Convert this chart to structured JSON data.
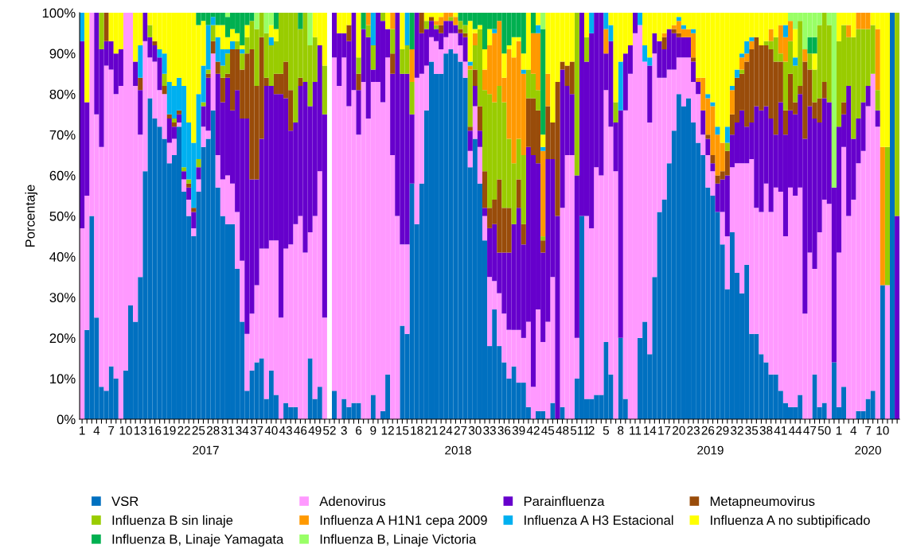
{
  "chart_data": {
    "type": "bar",
    "stacked": true,
    "ylabel": "Porcentaje",
    "ylim": [
      0,
      100
    ],
    "yticks": [
      {
        "value": 0,
        "label": "0%"
      },
      {
        "value": 10,
        "label": "10%"
      },
      {
        "value": 20,
        "label": "20%"
      },
      {
        "value": 30,
        "label": "30%"
      },
      {
        "value": 40,
        "label": "40%"
      },
      {
        "value": 50,
        "label": "50%"
      },
      {
        "value": 60,
        "label": "60%"
      },
      {
        "value": 70,
        "label": "70%"
      },
      {
        "value": 80,
        "label": "80%"
      },
      {
        "value": 90,
        "label": "90%"
      },
      {
        "value": 100,
        "label": "100%"
      }
    ],
    "grid": false,
    "legend": "bottom",
    "annotations": [
      "2017",
      "2018",
      "2019",
      "2020"
    ],
    "categories": [
      "1",
      null,
      null,
      "4",
      null,
      null,
      "7",
      null,
      null,
      "10",
      null,
      null,
      "13",
      null,
      null,
      "16",
      null,
      null,
      "19",
      null,
      null,
      "22",
      null,
      null,
      "25",
      null,
      null,
      "28",
      null,
      null,
      "31",
      null,
      null,
      "34",
      null,
      null,
      "37",
      null,
      null,
      "40",
      null,
      null,
      "43",
      null,
      null,
      "46",
      null,
      null,
      "49",
      null,
      null,
      "52",
      null,
      null,
      "3",
      null,
      null,
      "6",
      null,
      null,
      "9",
      null,
      null,
      "12",
      null,
      null,
      "15",
      null,
      null,
      "18",
      null,
      null,
      "21",
      null,
      null,
      "24",
      null,
      null,
      "27",
      null,
      null,
      "30",
      null,
      null,
      "33",
      null,
      null,
      "36",
      null,
      null,
      "39",
      null,
      null,
      "42",
      null,
      null,
      "45",
      null,
      null,
      "48",
      null,
      null,
      "51",
      null,
      "1",
      "2",
      null,
      null,
      "5",
      null,
      null,
      "8",
      null,
      null,
      "11",
      null,
      null,
      "14",
      null,
      null,
      "17",
      null,
      null,
      "20",
      null,
      null,
      "23",
      null,
      null,
      "26",
      null,
      null,
      "29",
      null,
      null,
      "32",
      null,
      null,
      "35",
      null,
      null,
      "38",
      null,
      null,
      "41",
      null,
      null,
      "44",
      null,
      null,
      "47",
      null,
      null,
      "50",
      null,
      null,
      "1",
      null,
      null,
      "4",
      null,
      null,
      "7",
      null,
      null,
      "10",
      null,
      null,
      null
    ],
    "series": [
      {
        "name": "VSR",
        "color": "#0070c0",
        "values": [
          0,
          22,
          50,
          25,
          8,
          7,
          13,
          10,
          0,
          12,
          28,
          24,
          35,
          61,
          79,
          74,
          72,
          69,
          63,
          65,
          72,
          56,
          50,
          45,
          56,
          67,
          69,
          76,
          57,
          50,
          48,
          48,
          37,
          24,
          7,
          12,
          14,
          15,
          5,
          12,
          6,
          0,
          4,
          3,
          3,
          0,
          0,
          15,
          5,
          8,
          0,
          0,
          7,
          0,
          5,
          3,
          4,
          4,
          0,
          0,
          6,
          0,
          2,
          11,
          0,
          0,
          23,
          21,
          58,
          48,
          58,
          76,
          88,
          85,
          85,
          90,
          91,
          90,
          88,
          84,
          62,
          69,
          58,
          44,
          18,
          27,
          18,
          14,
          10,
          13,
          9,
          9,
          3,
          0,
          2,
          2,
          0,
          4,
          0,
          3,
          0,
          0,
          10,
          50,
          5,
          5,
          6,
          6,
          19,
          11,
          0,
          20,
          5,
          0,
          0,
          20,
          24,
          16,
          35,
          51,
          54,
          63,
          71,
          80,
          77,
          79,
          73,
          68,
          65,
          57,
          55,
          51,
          43,
          32,
          46,
          36,
          31,
          38,
          21,
          21,
          16,
          14,
          11,
          11,
          7,
          4,
          3,
          3,
          6,
          0,
          0,
          11,
          3,
          4,
          0,
          14,
          3,
          8,
          0,
          0,
          2,
          2,
          5,
          7,
          0,
          33,
          0,
          100,
          0
        ]
      },
      {
        "name": "Adenovirus",
        "color": "#ff99ff",
        "values": [
          47,
          33,
          50,
          50,
          59,
          80,
          73,
          70,
          82,
          88,
          72,
          58,
          35,
          32,
          10,
          14,
          9,
          11,
          5,
          4,
          1,
          3,
          4,
          2,
          3,
          5,
          2,
          14,
          8,
          9,
          12,
          10,
          14,
          15,
          14,
          14,
          19,
          27,
          37,
          32,
          38,
          25,
          38,
          40,
          45,
          50,
          41,
          31,
          45,
          53,
          25,
          0,
          82,
          82,
          84,
          74,
          77,
          66,
          83,
          74,
          77,
          83,
          76,
          78,
          65,
          50,
          20,
          22,
          0,
          36,
          27,
          11,
          6,
          8,
          6,
          4,
          4,
          5,
          4,
          4,
          4,
          8,
          9,
          6,
          17,
          7,
          13,
          12,
          12,
          9,
          13,
          11,
          21,
          8,
          25,
          17,
          24,
          31,
          0,
          49,
          65,
          65,
          10,
          0,
          45,
          42,
          56,
          54,
          62,
          61,
          61,
          0,
          71,
          85,
          95,
          77,
          64,
          57,
          55,
          33,
          30,
          23,
          15,
          9,
          12,
          10,
          10,
          12,
          5,
          8,
          6,
          0,
          8,
          13,
          16,
          27,
          32,
          25,
          43,
          31,
          35,
          44,
          40,
          46,
          49,
          41,
          54,
          52,
          51,
          26,
          41,
          26,
          43,
          50,
          53,
          0,
          38,
          59,
          50,
          54,
          61,
          64,
          72,
          78,
          72,
          0,
          33,
          0,
          0
        ]
      },
      {
        "name": "Parainfluenza",
        "color": "#6600cc",
        "values": [
          46,
          23,
          0,
          25,
          24,
          6,
          7,
          10,
          9,
          0,
          0,
          6,
          11,
          7,
          5,
          4,
          8,
          0,
          6,
          3,
          2,
          2,
          3,
          4,
          3,
          5,
          13,
          0,
          20,
          19,
          24,
          18,
          30,
          35,
          53,
          33,
          26,
          27,
          40,
          38,
          36,
          55,
          37,
          28,
          25,
          32,
          42,
          31,
          33,
          31,
          50,
          0,
          11,
          13,
          6,
          16,
          19,
          11,
          13,
          20,
          3,
          17,
          20,
          7,
          20,
          50,
          42,
          42,
          17,
          16,
          10,
          9,
          4,
          3,
          4,
          4,
          3,
          2,
          3,
          6,
          5,
          5,
          4,
          2,
          12,
          14,
          10,
          15,
          19,
          26,
          30,
          23,
          43,
          57,
          36,
          22,
          40,
          29,
          50,
          34,
          17,
          15,
          40,
          50,
          38,
          48,
          38,
          40,
          9,
          21,
          12,
          56,
          14,
          7,
          5,
          0,
          0,
          14,
          5,
          9,
          7,
          10,
          9,
          5,
          5,
          5,
          5,
          3,
          6,
          4,
          2,
          7,
          8,
          15,
          8,
          10,
          13,
          9,
          9,
          25,
          25,
          19,
          23,
          13,
          22,
          25,
          19,
          20,
          23,
          43,
          36,
          37,
          27,
          25,
          25,
          43,
          31,
          8,
          32,
          15,
          11,
          12,
          5,
          0,
          4,
          0,
          0,
          0,
          50
        ]
      },
      {
        "name": "Metapneumovirus",
        "color": "#994c0a",
        "values": [
          0,
          0,
          0,
          0,
          0,
          7,
          0,
          0,
          0,
          0,
          0,
          0,
          3,
          0,
          0,
          1,
          0,
          2,
          1,
          1,
          1,
          0,
          1,
          1,
          0,
          0,
          1,
          3,
          3,
          6,
          1,
          15,
          10,
          12,
          16,
          32,
          23,
          25,
          2,
          0,
          5,
          5,
          9,
          10,
          0,
          2,
          0,
          0,
          0,
          0,
          0,
          0,
          0,
          0,
          0,
          4,
          0,
          4,
          0,
          0,
          0,
          0,
          0,
          0,
          5,
          0,
          0,
          0,
          0,
          0,
          5,
          0,
          1,
          0,
          2,
          0,
          0,
          0,
          1,
          1,
          1,
          4,
          6,
          9,
          5,
          6,
          18,
          11,
          11,
          0,
          7,
          5,
          12,
          14,
          13,
          3,
          13,
          9,
          33,
          2,
          5,
          8,
          0,
          0,
          0,
          0,
          0,
          0,
          0,
          0,
          0,
          0,
          0,
          0,
          0,
          0,
          0,
          0,
          0,
          0,
          3,
          0,
          1,
          1,
          0,
          0,
          1,
          0,
          0,
          1,
          2,
          2,
          2,
          6,
          5,
          11,
          9,
          16,
          18,
          17,
          16,
          15,
          17,
          18,
          10,
          6,
          9,
          3,
          2,
          19,
          9,
          4,
          6,
          4,
          0,
          0,
          0,
          3,
          0,
          0,
          0,
          0,
          0,
          0,
          0,
          0,
          0,
          0,
          0
        ]
      },
      {
        "name": "Influenza B sin linaje",
        "color": "#99cc00",
        "values": [
          0,
          0,
          0,
          0,
          9,
          0,
          0,
          0,
          0,
          0,
          0,
          0,
          0,
          0,
          3,
          0,
          0,
          3,
          0,
          1,
          0,
          1,
          1,
          0,
          2,
          1,
          1,
          4,
          0,
          3,
          5,
          0,
          2,
          4,
          4,
          7,
          14,
          6,
          11,
          10,
          8,
          15,
          12,
          19,
          27,
          12,
          17,
          15,
          11,
          0,
          12,
          0,
          0,
          0,
          0,
          0,
          0,
          4,
          0,
          3,
          6,
          0,
          2,
          0,
          6,
          0,
          6,
          7,
          8,
          0,
          0,
          2,
          0,
          1,
          0,
          0,
          1,
          0,
          2,
          2,
          14,
          6,
          19,
          20,
          28,
          24,
          23,
          26,
          17,
          15,
          10,
          17,
          7,
          6,
          5,
          1,
          0,
          0,
          0,
          0,
          0,
          0,
          40,
          0,
          6,
          0,
          0,
          0,
          0,
          0,
          5,
          0,
          0,
          0,
          0,
          0,
          0,
          0,
          0,
          0,
          0,
          0,
          0,
          0,
          0,
          0,
          0,
          0,
          0,
          0,
          0,
          0,
          0,
          2,
          0,
          0,
          1,
          0,
          0,
          0,
          0,
          1,
          2,
          6,
          2,
          12,
          8,
          9,
          16,
          0,
          4,
          8,
          18,
          17,
          19,
          0,
          21,
          19,
          12,
          25,
          22,
          18,
          14,
          12,
          5,
          0,
          34,
          0,
          50
        ]
      },
      {
        "name": "Influenza A H1N1 cepa 2009",
        "color": "#ff9900",
        "values": [
          0,
          0,
          0,
          0,
          0,
          0,
          0,
          0,
          0,
          0,
          0,
          0,
          0,
          0,
          0,
          0,
          0,
          0,
          0,
          0,
          0,
          0,
          0,
          0,
          0,
          0,
          0,
          0,
          0,
          0,
          0,
          0,
          0,
          0,
          0,
          0,
          0,
          0,
          0,
          0,
          0,
          0,
          0,
          0,
          0,
          0,
          0,
          0,
          0,
          0,
          0,
          0,
          0,
          0,
          0,
          0,
          0,
          0,
          0,
          3,
          0,
          0,
          0,
          0,
          4,
          0,
          0,
          0,
          8,
          0,
          0,
          0,
          0,
          1,
          2,
          2,
          1,
          2,
          0,
          0,
          1,
          3,
          0,
          5,
          12,
          17,
          16,
          6,
          22,
          26,
          24,
          20,
          0,
          10,
          14,
          21,
          8,
          0,
          0,
          0,
          0,
          0,
          0,
          0,
          0,
          0,
          0,
          0,
          6,
          0,
          0,
          0,
          0,
          0,
          0,
          0,
          0,
          0,
          0,
          0,
          1,
          0,
          1,
          3,
          2,
          2,
          6,
          1,
          8,
          9,
          12,
          10,
          7,
          0,
          6,
          0,
          3,
          2,
          2,
          0,
          0,
          0,
          3,
          0,
          7,
          6,
          5,
          0,
          0,
          3,
          0,
          0,
          0,
          0,
          0,
          0,
          0,
          0,
          3,
          0,
          4,
          4,
          4,
          0,
          15,
          34,
          0,
          0,
          0
        ]
      },
      {
        "name": "Influenza A H3 Estacional",
        "color": "#00b0f0",
        "values": [
          7,
          0,
          0,
          0,
          0,
          0,
          0,
          0,
          0,
          0,
          0,
          0,
          8,
          0,
          0,
          0,
          2,
          5,
          8,
          8,
          8,
          20,
          14,
          16,
          16,
          9,
          11,
          2,
          6,
          4,
          1,
          2,
          0,
          1,
          0,
          0,
          0,
          0,
          0,
          2,
          0,
          0,
          0,
          0,
          0,
          0,
          0,
          0,
          0,
          0,
          0,
          0,
          0,
          0,
          0,
          0,
          0,
          0,
          0,
          0,
          8,
          0,
          0,
          0,
          0,
          0,
          0,
          8,
          0,
          0,
          0,
          0,
          0,
          0,
          0,
          0,
          0,
          0,
          0,
          0,
          1,
          0,
          0,
          0,
          0,
          1,
          0,
          0,
          0,
          0,
          0,
          1,
          0,
          0,
          2,
          1,
          0,
          0,
          0,
          0,
          0,
          0,
          0,
          0,
          0,
          5,
          0,
          0,
          4,
          4,
          0,
          12,
          0,
          0,
          0,
          3,
          4,
          2,
          0,
          0,
          0,
          0,
          0,
          1,
          1,
          0,
          1,
          0,
          0,
          1,
          1,
          2,
          0,
          4,
          1,
          2,
          1,
          3,
          1,
          0,
          0,
          0,
          0,
          0,
          0,
          3,
          0,
          2,
          0,
          0,
          0,
          0,
          0,
          0,
          0,
          0,
          0,
          0,
          0,
          0,
          0,
          0,
          0,
          0,
          0,
          0,
          0,
          0,
          0
        ]
      },
      {
        "name": "Influenza A no subtipificado",
        "color": "#ffff00",
        "values": [
          0,
          22,
          0,
          0,
          0,
          0,
          7,
          10,
          9,
          0,
          0,
          12,
          8,
          0,
          3,
          7,
          9,
          10,
          17,
          18,
          16,
          18,
          27,
          32,
          17,
          11,
          0,
          0,
          3,
          6,
          3,
          3,
          2,
          1,
          3,
          0,
          0,
          0,
          0,
          3,
          3,
          0,
          0,
          0,
          0,
          0,
          0,
          0,
          6,
          8,
          13,
          0,
          0,
          5,
          5,
          3,
          0,
          11,
          0,
          0,
          0,
          0,
          0,
          4,
          0,
          0,
          9,
          0,
          0,
          0,
          0,
          2,
          1,
          2,
          1,
          0,
          0,
          1,
          0,
          0,
          10,
          1,
          1,
          5,
          4,
          0,
          0,
          6,
          1,
          5,
          1,
          4,
          14,
          0,
          3,
          3,
          15,
          27,
          17,
          12,
          13,
          12,
          0,
          0,
          6,
          0,
          0,
          0,
          0,
          3,
          22,
          12,
          10,
          8,
          0,
          0,
          8,
          11,
          5,
          7,
          5,
          4,
          3,
          1,
          3,
          4,
          4,
          16,
          16,
          20,
          22,
          28,
          32,
          28,
          18,
          14,
          10,
          7,
          6,
          6,
          8,
          7,
          4,
          6,
          3,
          3,
          0,
          7,
          0,
          0,
          0,
          4,
          0,
          0,
          0,
          0,
          7,
          3,
          3,
          6,
          0,
          0,
          0,
          3,
          4,
          33,
          33,
          0,
          0
        ]
      },
      {
        "name": "Influenza B, Linaje Yamagata",
        "color": "#00b050",
        "values": [
          0,
          0,
          0,
          0,
          0,
          0,
          0,
          0,
          0,
          0,
          0,
          0,
          0,
          0,
          0,
          0,
          0,
          0,
          0,
          0,
          0,
          0,
          0,
          0,
          3,
          2,
          3,
          1,
          3,
          3,
          5,
          4,
          5,
          8,
          3,
          2,
          0,
          0,
          0,
          0,
          4,
          0,
          0,
          0,
          0,
          4,
          0,
          0,
          0,
          0,
          0,
          0,
          0,
          0,
          0,
          0,
          0,
          0,
          4,
          0,
          0,
          0,
          0,
          0,
          0,
          0,
          0,
          0,
          9,
          0,
          0,
          0,
          0,
          0,
          0,
          0,
          0,
          0,
          2,
          3,
          2,
          4,
          3,
          9,
          4,
          4,
          2,
          10,
          8,
          6,
          6,
          10,
          0,
          5,
          0,
          26,
          0,
          0,
          0,
          0,
          0,
          0,
          0,
          0,
          0,
          0,
          0,
          0,
          0,
          0,
          0,
          0,
          0,
          0,
          0,
          0,
          0,
          0,
          0,
          0,
          0,
          0,
          0,
          0,
          0,
          0,
          0,
          0,
          0,
          0,
          0,
          0,
          0,
          0,
          0,
          0,
          0,
          0,
          0,
          0,
          0,
          0,
          0,
          0,
          0,
          0,
          0,
          0,
          0,
          0,
          4,
          4,
          0,
          0,
          0,
          0,
          0,
          0,
          0,
          0,
          0,
          0,
          0,
          0,
          0,
          0,
          0,
          0,
          0
        ]
      },
      {
        "name": "Influenza B, Linaje Victoria",
        "color": "#99ff66",
        "values": [
          0,
          0,
          0,
          0,
          0,
          0,
          0,
          0,
          0,
          0,
          0,
          0,
          0,
          0,
          0,
          0,
          0,
          0,
          0,
          0,
          0,
          0,
          0,
          0,
          0,
          0,
          0,
          0,
          0,
          0,
          1,
          0,
          0,
          0,
          0,
          0,
          4,
          0,
          5,
          3,
          0,
          0,
          0,
          0,
          0,
          0,
          0,
          8,
          0,
          0,
          0,
          0,
          0,
          0,
          0,
          0,
          0,
          0,
          0,
          0,
          0,
          0,
          0,
          0,
          0,
          0,
          0,
          0,
          0,
          0,
          0,
          0,
          0,
          0,
          0,
          0,
          0,
          0,
          0,
          0,
          0,
          0,
          0,
          0,
          0,
          0,
          0,
          0,
          0,
          0,
          0,
          0,
          0,
          0,
          0,
          4,
          0,
          0,
          0,
          0,
          0,
          0,
          0,
          0,
          0,
          0,
          0,
          0,
          0,
          0,
          0,
          0,
          0,
          0,
          0,
          0,
          0,
          0,
          0,
          0,
          0,
          0,
          0,
          0,
          0,
          0,
          0,
          0,
          0,
          0,
          0,
          0,
          0,
          0,
          0,
          0,
          0,
          0,
          0,
          0,
          0,
          0,
          0,
          0,
          0,
          0,
          2,
          4,
          2,
          9,
          6,
          6,
          3,
          0,
          3,
          43,
          0,
          0,
          0,
          0,
          0,
          0,
          0,
          0,
          0,
          0,
          0,
          0,
          0
        ]
      }
    ]
  }
}
